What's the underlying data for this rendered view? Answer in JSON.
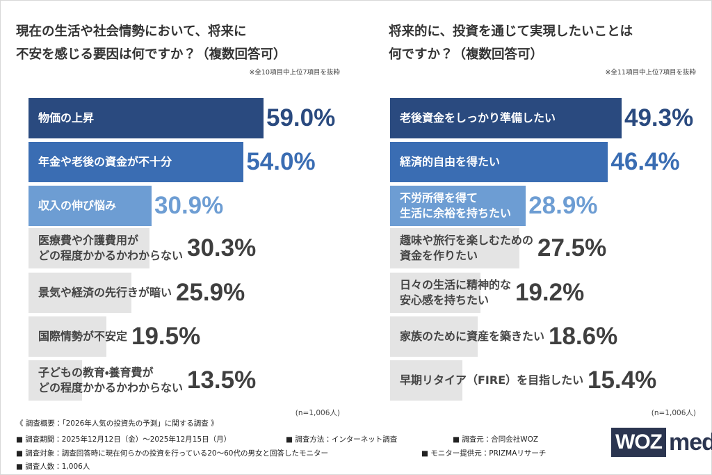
{
  "chart_data": [
    {
      "type": "bar",
      "orientation": "horizontal",
      "title": "現在の生活や社会情勢において、将来に\n不安を感じる要因は何ですか？（複数回答可）",
      "note": "※全10項目中上位7項目を抜粋",
      "sample_size": "(n=1,006人)",
      "categories": [
        "物価の上昇",
        "年金や老後の資金が不十分",
        "収入の伸び悩み",
        "医療費や介護費用が\nどの程度かかるかわからない",
        "景気や経済の先行きが暗い",
        "国際情勢が不安定",
        "子どもの教育・養育費が\nどの程度かかるかわからない"
      ],
      "values": [
        59.0,
        54.0,
        30.9,
        30.3,
        25.9,
        19.5,
        13.5
      ],
      "value_labels": [
        "59.0%",
        "54.0%",
        "30.9%",
        "30.3%",
        "25.9%",
        "19.5%",
        "13.5%"
      ],
      "colors": [
        "#2a4a7f",
        "#3a6db3",
        "#6d9dd3",
        "#e4e4e4",
        "#e4e4e4",
        "#e4e4e4",
        "#e4e4e4"
      ]
    },
    {
      "type": "bar",
      "orientation": "horizontal",
      "title": "将来的に、投資を通じて実現したいことは\n何ですか？（複数回答可）",
      "note": "※全11項目中上位7項目を抜粋",
      "sample_size": "(n=1,006人)",
      "categories": [
        "老後資金をしっかり準備したい",
        "経済的自由を得たい",
        "不労所得を得て\n生活に余裕を持ちたい",
        "趣味や旅行を楽しむための\n資金を作りたい",
        "日々の生活に精神的な\n安心感を持ちたい",
        "家族のために資産を築きたい",
        "早期リタイア（FIRE）を目指したい"
      ],
      "values": [
        49.3,
        46.4,
        28.9,
        27.5,
        19.2,
        18.6,
        15.4
      ],
      "value_labels": [
        "49.3%",
        "46.4%",
        "28.9%",
        "27.5%",
        "19.2%",
        "18.6%",
        "15.4%"
      ],
      "colors": [
        "#2a4a7f",
        "#3a6db3",
        "#6d9dd3",
        "#e4e4e4",
        "#e4e4e4",
        "#e4e4e4",
        "#e4e4e4"
      ]
    }
  ],
  "footer": [
    "《 調査概要：「2026年人気の投資先の予測」に関する調査 》",
    "■ 調査期間：2025年12月12日（金）～2025年12月15日（月）",
    "■ 調査方法：インターネット調査",
    "■ 調査元：合同会社WOZ",
    "■ 調査対象：調査回答時に現在何らかの投資を行っている20～60代の男女と回答したモニター",
    "■ モニター提供元：PRIZMAリサーチ",
    "■ 調査人数：1,006人"
  ],
  "logo": {
    "brand": "WOZ",
    "suffix": "media"
  }
}
